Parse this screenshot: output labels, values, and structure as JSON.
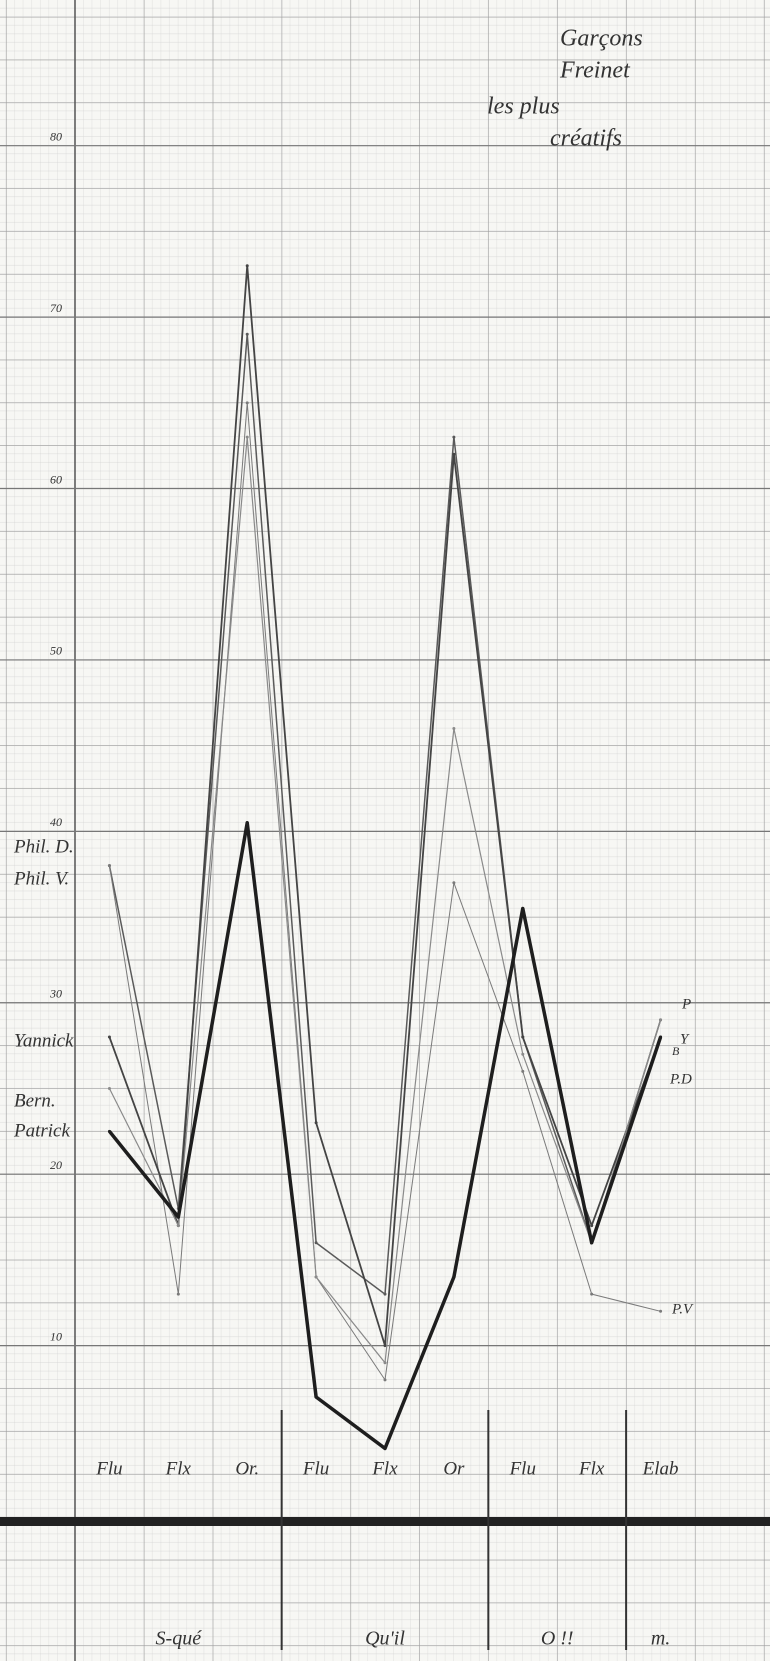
{
  "chart_data": {
    "type": "line",
    "title": [
      "Garçons",
      "Freinet",
      "les plus",
      "créatifs"
    ],
    "categories": [
      "Flu",
      "Flx",
      "Or.",
      "Flu",
      "Flx",
      "Or",
      "Flu",
      "Flx",
      "Elab"
    ],
    "groups": [
      "S-qué",
      "Qu'il",
      "O !!",
      "m."
    ],
    "series": [
      {
        "name": "Phil. D.",
        "color": "#5a5a5a",
        "values": [
          38,
          18,
          69,
          16,
          13,
          63,
          28,
          16,
          29
        ]
      },
      {
        "name": "Phil. V.",
        "color": "#7a7a7a",
        "values": [
          38,
          13,
          65,
          14,
          8,
          37,
          26,
          13,
          12
        ]
      },
      {
        "name": "Yannick",
        "color": "#444444",
        "values": [
          28,
          17,
          73,
          23,
          10,
          62,
          28,
          17,
          28
        ]
      },
      {
        "name": "Bern.",
        "color": "#8a8a8a",
        "values": [
          25,
          17,
          63,
          14,
          9,
          46,
          27,
          16,
          29
        ]
      },
      {
        "name": "Patrick",
        "color": "#1e1e1e",
        "values": [
          22.5,
          17.5,
          40.5,
          7,
          4,
          14,
          35.5,
          16,
          28
        ]
      }
    ],
    "annotations": [
      "P",
      "Y",
      "B",
      "P.D",
      "P.V"
    ],
    "ylim": [
      0,
      85
    ],
    "yticks": [
      10,
      20,
      30,
      40,
      50,
      60,
      70,
      80
    ],
    "grid": true
  }
}
